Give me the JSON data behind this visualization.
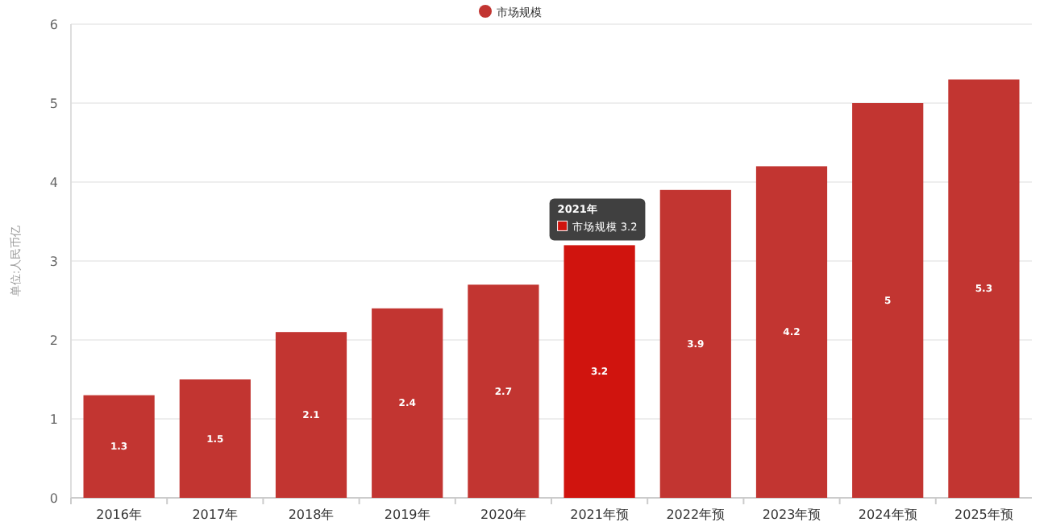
{
  "chart_data": {
    "type": "bar",
    "ylabel": "单位:人民币亿",
    "categories": [
      "2016年",
      "2017年",
      "2018年",
      "2019年",
      "2020年",
      "2021年预",
      "2022年预",
      "2023年预",
      "2024年预",
      "2025年预"
    ],
    "series": [
      {
        "name": "市场规模",
        "color": "#c23531",
        "colors": [
          "#c23531",
          "#c23531",
          "#c23531",
          "#c23531",
          "#c23531",
          "#d0140e",
          "#c23531",
          "#c23531",
          "#c23531",
          "#c23531"
        ],
        "values": [
          1.3,
          1.5,
          2.1,
          2.4,
          2.7,
          3.2,
          3.9,
          4.2,
          5,
          5.3
        ]
      }
    ],
    "ylim": [
      0,
      6
    ],
    "yticks": [
      0,
      1,
      2,
      3,
      4,
      5,
      6
    ],
    "grid": "y",
    "legend": "top",
    "data_labels": true,
    "annotations": [
      {
        "text": "2021年",
        "x": "2021年预",
        "y": 3.2
      },
      "市场规模  3.2"
    ]
  }
}
